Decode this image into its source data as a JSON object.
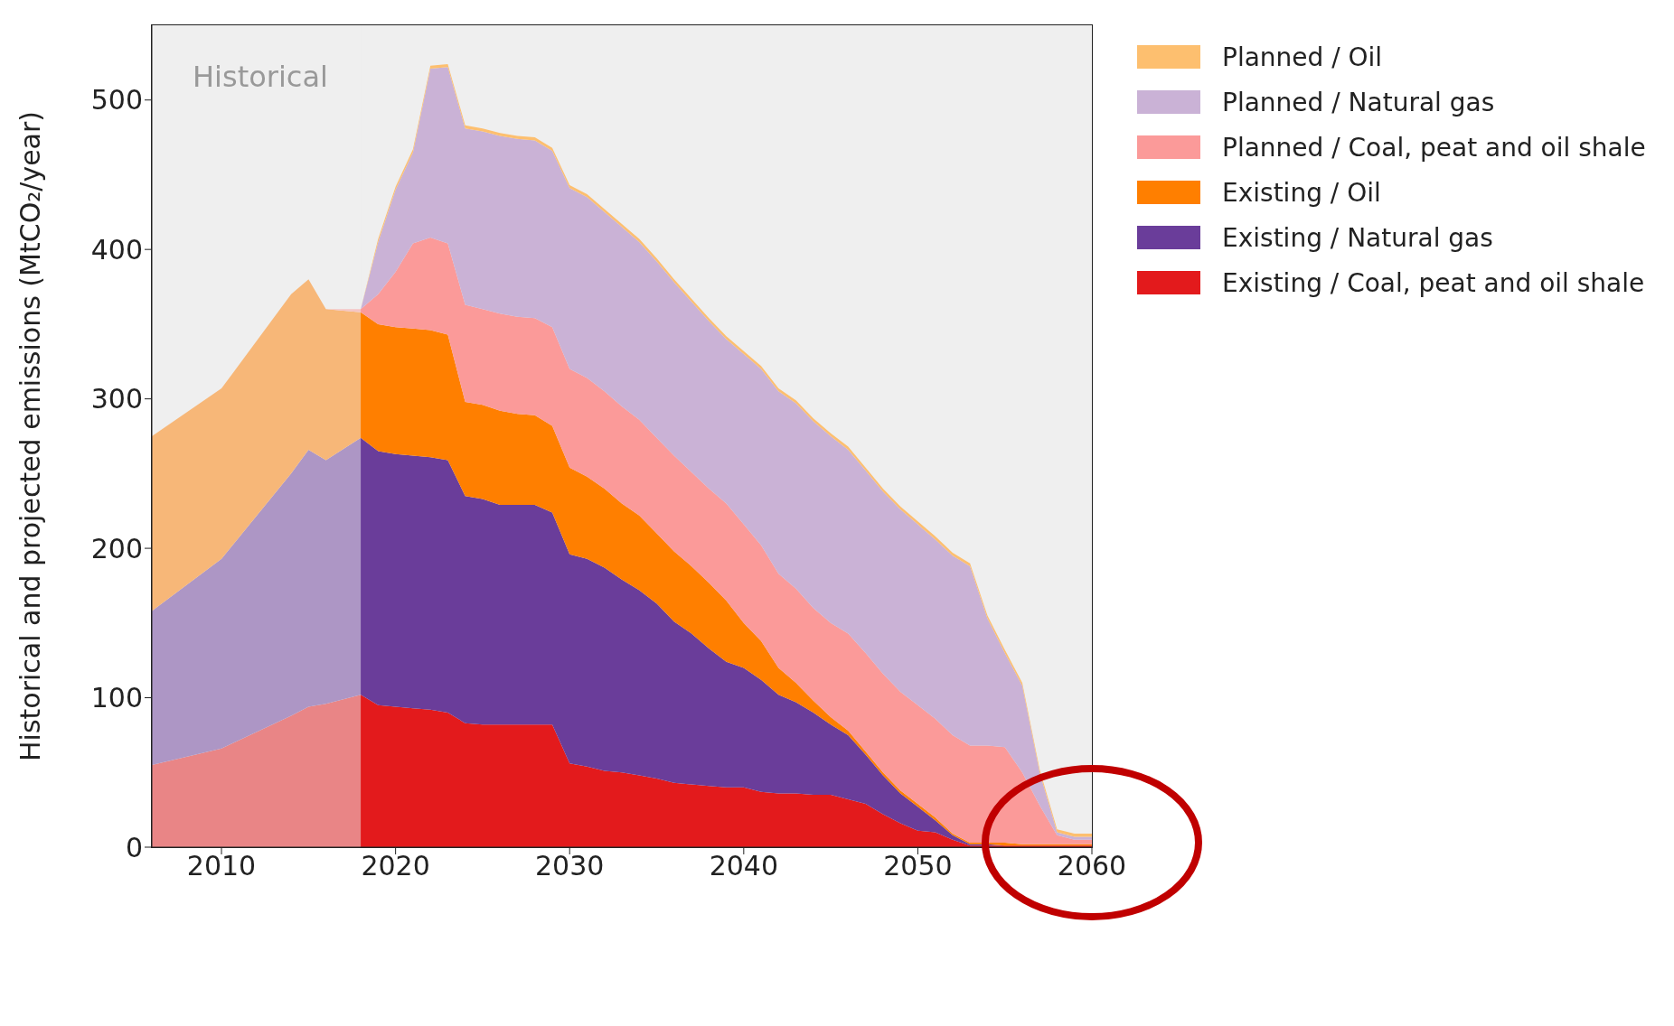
{
  "chart_data": {
    "type": "area",
    "stacked": true,
    "ylabel": "Historical and projected emissions (MtCO₂/year)",
    "xlim": [
      2006,
      2060
    ],
    "xticks": [
      2010,
      2020,
      2030,
      2040,
      2050,
      2060
    ],
    "ylim": [
      0,
      550
    ],
    "yticks": [
      0,
      100,
      200,
      300,
      400,
      500
    ],
    "legend": "right",
    "bands": [
      {
        "axis": "x",
        "from": 2006,
        "to": 2018,
        "label": "Historical",
        "color": "#efefef"
      }
    ],
    "x": [
      2006,
      2010,
      2014,
      2015,
      2016,
      2018,
      2019,
      2020,
      2021,
      2022,
      2023,
      2024,
      2025,
      2026,
      2027,
      2028,
      2029,
      2030,
      2031,
      2032,
      2033,
      2034,
      2035,
      2036,
      2037,
      2038,
      2039,
      2040,
      2041,
      2042,
      2043,
      2044,
      2045,
      2046,
      2047,
      2048,
      2049,
      2050,
      2051,
      2052,
      2053,
      2054,
      2055,
      2056,
      2057,
      2058,
      2059,
      2060
    ],
    "series": [
      {
        "name": "Existing / Coal, peat and oil shale",
        "color": "#e31a1c",
        "values": [
          55,
          66,
          88,
          94,
          96,
          102,
          95,
          94,
          93,
          92,
          90,
          83,
          82,
          82,
          82,
          82,
          82,
          56,
          54,
          51,
          50,
          48,
          46,
          43,
          42,
          41,
          40,
          40,
          37,
          36,
          36,
          35,
          35,
          32,
          29,
          22,
          16,
          11,
          10,
          5,
          1,
          1,
          1,
          1,
          1,
          1,
          1,
          1
        ]
      },
      {
        "name": "Existing / Natural gas",
        "color": "#6a3d9a",
        "values": [
          103,
          127,
          162,
          172,
          163,
          172,
          170,
          169,
          169,
          169,
          169,
          152,
          151,
          147,
          147,
          147,
          142,
          140,
          139,
          136,
          129,
          124,
          117,
          108,
          101,
          92,
          84,
          80,
          75,
          66,
          61,
          55,
          47,
          43,
          33,
          26,
          20,
          16,
          8,
          3,
          1,
          1,
          0,
          0,
          0,
          0,
          0,
          0
        ]
      },
      {
        "name": "Existing / Oil",
        "color": "#ff7f00",
        "values": [
          117,
          114,
          120,
          114,
          101,
          84,
          85,
          85,
          85,
          85,
          84,
          63,
          63,
          63,
          61,
          60,
          58,
          58,
          55,
          53,
          51,
          50,
          47,
          47,
          45,
          44,
          41,
          30,
          26,
          18,
          13,
          8,
          5,
          3,
          2,
          2,
          2,
          2,
          2,
          1,
          1,
          1,
          2,
          1,
          1,
          1,
          1,
          1
        ]
      },
      {
        "name": "Planned / Coal, peat and oil shale",
        "color": "#fb9a99",
        "values": [
          0,
          0,
          0,
          0,
          0,
          2,
          20,
          37,
          57,
          62,
          61,
          65,
          64,
          65,
          65,
          65,
          66,
          66,
          66,
          65,
          65,
          64,
          64,
          64,
          63,
          63,
          65,
          66,
          64,
          63,
          63,
          62,
          63,
          65,
          66,
          66,
          66,
          66,
          66,
          66,
          65,
          65,
          64,
          48,
          26,
          6,
          3,
          3
        ]
      },
      {
        "name": "Planned / Natural gas",
        "color": "#cab2d6",
        "values": [
          0,
          0,
          0,
          0,
          0,
          0,
          35,
          55,
          61,
          113,
          118,
          118,
          119,
          119,
          119,
          119,
          118,
          121,
          121,
          120,
          120,
          119,
          118,
          116,
          114,
          112,
          110,
          114,
          118,
          122,
          124,
          125,
          125,
          123,
          122,
          122,
          122,
          121,
          120,
          120,
          120,
          85,
          63,
          58,
          22,
          2,
          2,
          2
        ]
      },
      {
        "name": "Planned / Oil",
        "color": "#fdbf6f",
        "values": [
          0,
          0,
          0,
          0,
          0,
          0,
          2,
          2,
          2,
          2,
          2,
          2,
          2,
          2,
          2,
          2,
          2,
          2,
          2,
          2,
          2,
          2,
          2,
          2,
          2,
          2,
          2,
          2,
          2,
          2,
          2,
          2,
          2,
          2,
          2,
          2,
          2,
          2,
          2,
          2,
          2,
          2,
          2,
          2,
          2,
          2,
          2,
          2
        ]
      }
    ]
  }
}
